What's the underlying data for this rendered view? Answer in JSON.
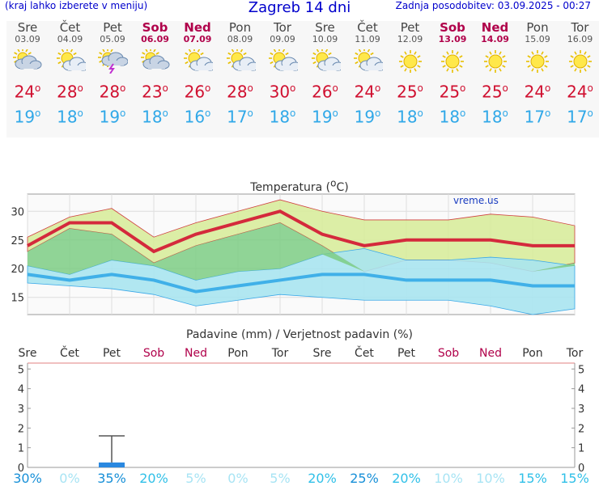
{
  "header": {
    "hint": "(kraj lahko izberete v meniju)",
    "title": "Zagreb 14 dni",
    "updated": "Zadnja posodobitev: 03.09.2025 - 00:27"
  },
  "days": [
    {
      "name": "Sre",
      "date": "03.09",
      "weekend": false,
      "icon": "partly-cloudy-icon",
      "tmax": "24",
      "tmin": "19"
    },
    {
      "name": "Čet",
      "date": "04.09",
      "weekend": false,
      "icon": "sun-cloud-icon",
      "tmax": "28",
      "tmin": "18"
    },
    {
      "name": "Pet",
      "date": "05.09",
      "weekend": false,
      "icon": "thunder-icon",
      "tmax": "28",
      "tmin": "19"
    },
    {
      "name": "Sob",
      "date": "06.09",
      "weekend": true,
      "icon": "partly-cloudy-icon",
      "tmax": "23",
      "tmin": "18"
    },
    {
      "name": "Ned",
      "date": "07.09",
      "weekend": true,
      "icon": "sun-cloud-icon",
      "tmax": "26",
      "tmin": "16"
    },
    {
      "name": "Pon",
      "date": "08.09",
      "weekend": false,
      "icon": "sun-cloud-icon",
      "tmax": "28",
      "tmin": "17"
    },
    {
      "name": "Tor",
      "date": "09.09",
      "weekend": false,
      "icon": "sun-cloud-icon",
      "tmax": "30",
      "tmin": "18"
    },
    {
      "name": "Sre",
      "date": "10.09",
      "weekend": false,
      "icon": "sun-cloud-icon",
      "tmax": "26",
      "tmin": "19"
    },
    {
      "name": "Čet",
      "date": "11.09",
      "weekend": false,
      "icon": "sun-cloud-icon",
      "tmax": "24",
      "tmin": "19"
    },
    {
      "name": "Pet",
      "date": "12.09",
      "weekend": false,
      "icon": "sun-icon",
      "tmax": "25",
      "tmin": "18"
    },
    {
      "name": "Sob",
      "date": "13.09",
      "weekend": true,
      "icon": "sun-icon",
      "tmax": "25",
      "tmin": "18"
    },
    {
      "name": "Ned",
      "date": "14.09",
      "weekend": true,
      "icon": "sun-icon",
      "tmax": "25",
      "tmin": "18"
    },
    {
      "name": "Pon",
      "date": "15.09",
      "weekend": false,
      "icon": "sun-icon",
      "tmax": "24",
      "tmin": "17"
    },
    {
      "name": "Tor",
      "date": "16.09",
      "weekend": false,
      "icon": "sun-icon",
      "tmax": "24",
      "tmin": "17"
    }
  ],
  "chart_data": [
    {
      "type": "line",
      "title": "Temperatura (oC)",
      "watermark": "vreme.us",
      "x": [
        "Sre",
        "Čet",
        "Pet",
        "Sob",
        "Ned",
        "Pon",
        "Tor",
        "Sre",
        "Čet",
        "Pet",
        "Sob",
        "Ned",
        "Pon",
        "Tor"
      ],
      "ylim": [
        12,
        33
      ],
      "yticks": [
        15,
        20,
        25,
        30
      ],
      "series": [
        {
          "values": [
            24,
            28,
            28,
            23,
            26,
            28,
            30,
            26,
            24,
            25,
            25,
            25,
            24,
            24
          ],
          "color": "#d42a3c",
          "band": [
            [
              23,
              25.5
            ],
            [
              27,
              29
            ],
            [
              26,
              30.5
            ],
            [
              21,
              25.5
            ],
            [
              24,
              28
            ],
            [
              26,
              30
            ],
            [
              28,
              32
            ],
            [
              24,
              30
            ],
            [
              19.5,
              28.5
            ],
            [
              21.5,
              28.5
            ],
            [
              21.5,
              28.5
            ],
            [
              21,
              29.5
            ],
            [
              19.5,
              29
            ],
            [
              21,
              27.5
            ]
          ],
          "band_color": "#d8ec9c"
        },
        {
          "values": [
            19,
            18,
            19,
            18,
            16,
            17,
            18,
            19,
            19,
            18,
            18,
            18,
            17,
            17
          ],
          "color": "#40b0e8",
          "band": [
            [
              17.5,
              20.5
            ],
            [
              17,
              19
            ],
            [
              16.5,
              21.5
            ],
            [
              15.5,
              20.5
            ],
            [
              13.5,
              18
            ],
            [
              14.5,
              19.5
            ],
            [
              15.5,
              20
            ],
            [
              15,
              22.5
            ],
            [
              14.5,
              23.5
            ],
            [
              14.5,
              21.5
            ],
            [
              14.5,
              21.5
            ],
            [
              13.5,
              22
            ],
            [
              12,
              21.5
            ],
            [
              13,
              20.5
            ]
          ],
          "band_color": "#a8e4f0"
        }
      ],
      "grid": true
    },
    {
      "type": "bar",
      "title": "Padavine (mm) / Verjetnost padavin (%)",
      "categories": [
        "Sre",
        "Čet",
        "Pet",
        "Sob",
        "Ned",
        "Pon",
        "Tor",
        "Sre",
        "Čet",
        "Pet",
        "Sob",
        "Ned",
        "Pon",
        "Tor"
      ],
      "weekend": [
        false,
        false,
        false,
        true,
        true,
        false,
        false,
        false,
        false,
        false,
        true,
        true,
        false,
        false
      ],
      "values": [
        0,
        0,
        0.25,
        0,
        0,
        0,
        0,
        0,
        0,
        0,
        0,
        0,
        0,
        0
      ],
      "error_max": [
        0,
        0,
        1.6,
        0,
        0,
        0,
        0,
        0,
        0,
        0,
        0,
        0,
        0,
        0
      ],
      "probability": [
        "30%",
        "0%",
        "35%",
        "20%",
        "5%",
        "0%",
        "5%",
        "20%",
        "25%",
        "20%",
        "10%",
        "10%",
        "15%",
        "15%"
      ],
      "ylim": [
        0,
        5.3
      ],
      "yticks": [
        0,
        1,
        2,
        3,
        4,
        5
      ]
    }
  ]
}
